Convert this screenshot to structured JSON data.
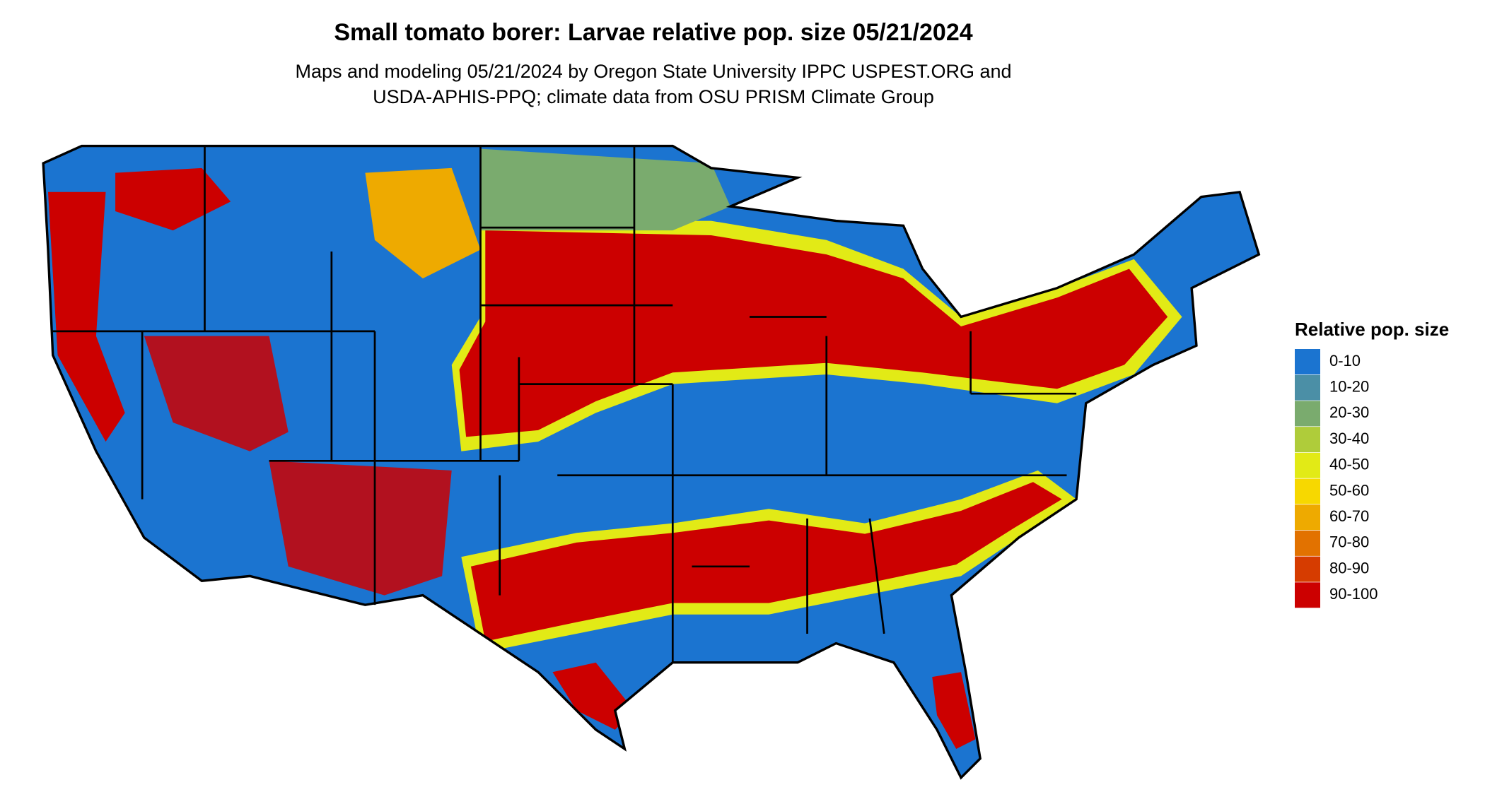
{
  "header": {
    "title": "Small tomato borer: Larvae relative pop. size 05/21/2024",
    "subtitle": [
      "Maps and modeling 05/21/2024 by Oregon State University IPPC USPEST.ORG and",
      "USDA-APHIS-PPQ; climate data from OSU PRISM Climate Group"
    ]
  },
  "legend": {
    "title": "Relative pop. size",
    "items": [
      {
        "label": "0-10",
        "color": "#1b74d0"
      },
      {
        "label": "10-20",
        "color": "#4b8fa6"
      },
      {
        "label": "20-30",
        "color": "#7aab6e"
      },
      {
        "label": "30-40",
        "color": "#afcc3a"
      },
      {
        "label": "40-50",
        "color": "#e2ea16"
      },
      {
        "label": "50-60",
        "color": "#f7d800"
      },
      {
        "label": "60-70",
        "color": "#eeaa00"
      },
      {
        "label": "70-80",
        "color": "#e27200"
      },
      {
        "label": "80-90",
        "color": "#d63c00"
      },
      {
        "label": "90-100",
        "color": "#cc0000"
      }
    ]
  }
}
